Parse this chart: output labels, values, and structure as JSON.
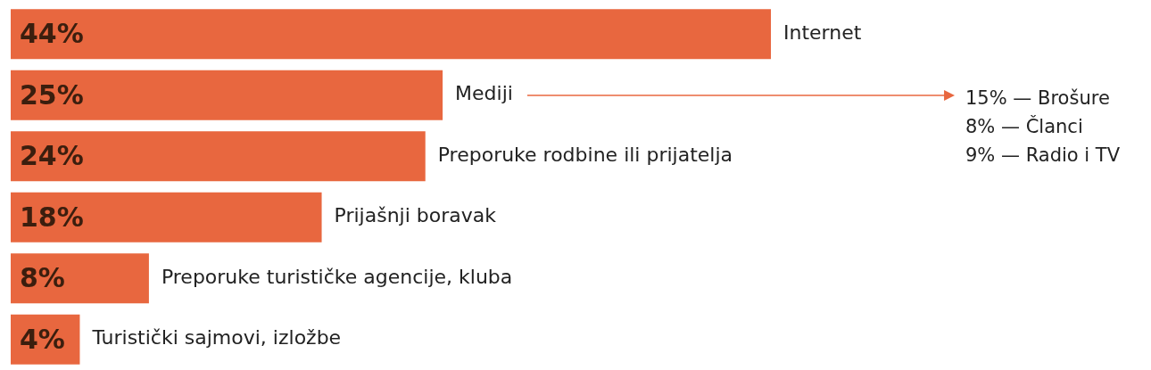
{
  "chart_data": {
    "type": "bar",
    "orientation": "horizontal",
    "categories": [
      "Internet",
      "Mediji",
      "Preporuke rodbine ili prijatelja",
      "Prijašnji boravak",
      "Preporuke turističke agencije, kluba",
      "Turistički sajmovi, izložbe"
    ],
    "values": [
      44,
      25,
      24,
      18,
      8,
      4
    ],
    "value_labels": [
      "44%",
      "25%",
      "24%",
      "18%",
      "8%",
      "4%"
    ],
    "color": "#e8673f",
    "legend": false,
    "annotations": [
      "15% — Brošure",
      "8% — Članci",
      "9% — Radio i TV"
    ]
  }
}
